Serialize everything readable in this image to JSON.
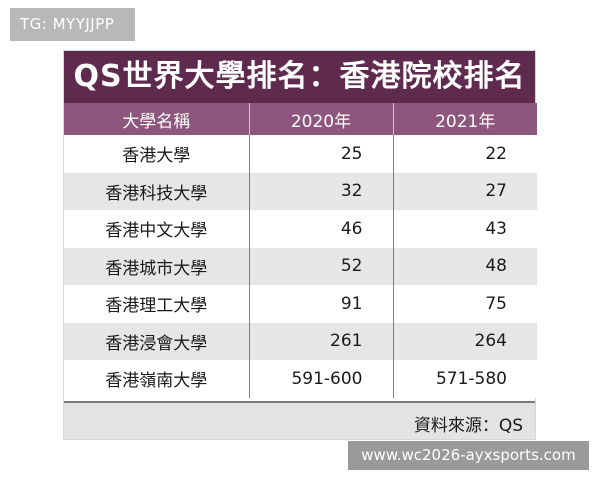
{
  "tg_badge": "TG: MYYJJPP",
  "title": "QS世界大學排名：香港院校排名",
  "columns": [
    "大學名稱",
    "2020年",
    "2021年"
  ],
  "rows": [
    {
      "name": "香港大學",
      "y2020": "25",
      "y2021": "22"
    },
    {
      "name": "香港科技大學",
      "y2020": "32",
      "y2021": "27"
    },
    {
      "name": "香港中文大學",
      "y2020": "46",
      "y2021": "43"
    },
    {
      "name": "香港城市大學",
      "y2020": "52",
      "y2021": "48"
    },
    {
      "name": "香港理工大學",
      "y2020": "91",
      "y2021": "75"
    },
    {
      "name": "香港浸會大學",
      "y2020": "261",
      "y2021": "264"
    },
    {
      "name": "香港嶺南大學",
      "y2020": "591-600",
      "y2021": "571-580"
    }
  ],
  "source": "資料來源：QS",
  "watermark": "www.wc2026-ayxsports.com",
  "colors": {
    "title_bg": "#5e2a4e",
    "header_bg": "#8d567d",
    "stripe": "#e6e6e6"
  }
}
